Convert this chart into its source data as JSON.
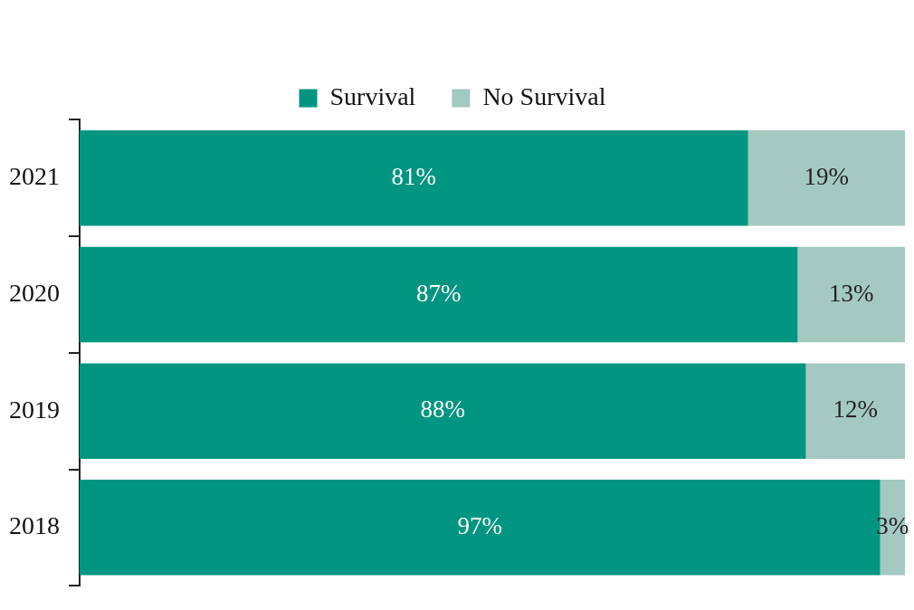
{
  "chart_data": {
    "type": "bar",
    "orientation": "horizontal",
    "stacked": true,
    "categories": [
      "2021",
      "2020",
      "2019",
      "2018"
    ],
    "series": [
      {
        "name": "Survival",
        "color": "#009580",
        "values": [
          81,
          87,
          88,
          97
        ],
        "value_labels": [
          "81%",
          "87%",
          "88%",
          "97%"
        ]
      },
      {
        "name": "No Survival",
        "color": "#a3c9c0",
        "values": [
          19,
          13,
          12,
          3
        ],
        "value_labels": [
          "19%",
          "13%",
          "12%",
          "3%"
        ]
      }
    ],
    "tick_labels": "y",
    "legend": "top",
    "grid": false
  }
}
